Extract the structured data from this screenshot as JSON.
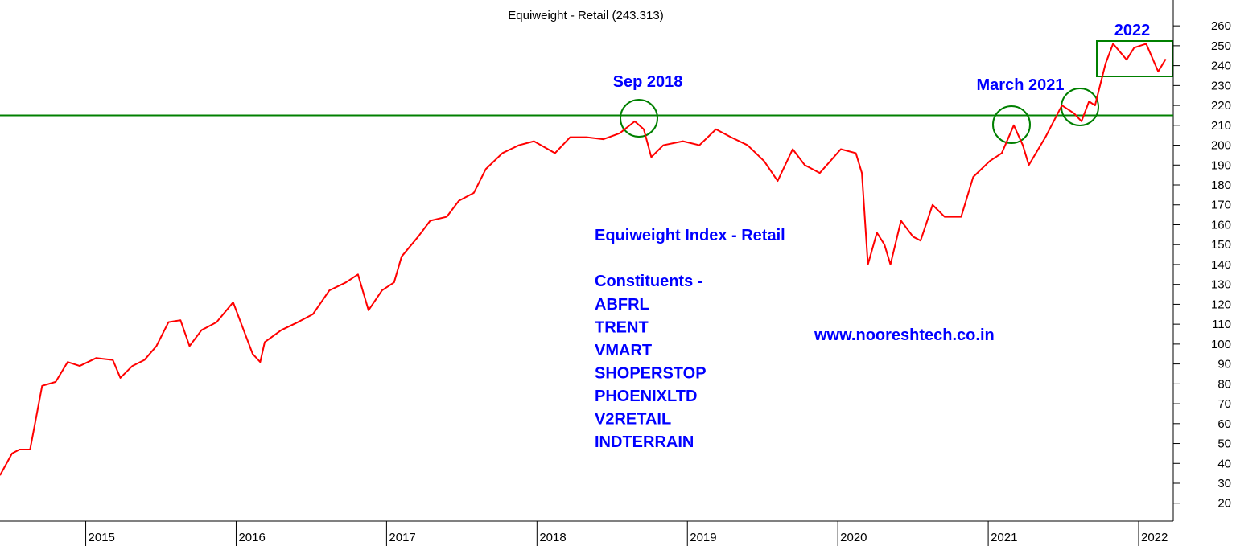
{
  "chart_data": {
    "type": "line",
    "title": "Equiweight - Retail (243.313)",
    "x": [
      2014.43,
      2014.51,
      2014.56,
      2014.63,
      2014.67,
      2014.71,
      2014.8,
      2014.88,
      2014.96,
      2015.07,
      2015.18,
      2015.23,
      2015.31,
      2015.39,
      2015.47,
      2015.55,
      2015.63,
      2015.69,
      2015.77,
      2015.87,
      2015.98,
      2016.03,
      2016.11,
      2016.16,
      2016.19,
      2016.3,
      2016.41,
      2016.51,
      2016.62,
      2016.73,
      2016.81,
      2016.88,
      2016.97,
      2017.05,
      2017.1,
      2017.21,
      2017.29,
      2017.4,
      2017.48,
      2017.58,
      2017.66,
      2017.77,
      2017.88,
      2017.98,
      2018.12,
      2018.22,
      2018.33,
      2018.44,
      2018.55,
      2018.65,
      2018.71,
      2018.76,
      2018.84,
      2018.97,
      2019.08,
      2019.19,
      2019.29,
      2019.4,
      2019.51,
      2019.6,
      2019.7,
      2019.78,
      2019.88,
      2020.02,
      2020.12,
      2020.16,
      2020.2,
      2020.26,
      2020.31,
      2020.35,
      2020.42,
      2020.5,
      2020.55,
      2020.63,
      2020.71,
      2020.82,
      2020.9,
      2021.01,
      2021.09,
      2021.17,
      2021.23,
      2021.27,
      2021.38,
      2021.49,
      2021.57,
      2021.62,
      2021.67,
      2021.71,
      2021.78,
      2021.83,
      2021.92,
      2021.97,
      2022.05,
      2022.13,
      2022.18
    ],
    "series": [
      {
        "name": "Equiweight - Retail",
        "color": "#ff0000",
        "values": [
          34,
          45,
          47,
          47,
          63,
          79,
          81,
          91,
          89,
          93,
          92,
          83,
          89,
          92,
          99,
          111,
          112,
          99,
          107,
          111,
          121,
          111,
          95,
          91,
          101,
          107,
          111,
          115,
          127,
          131,
          135,
          117,
          127,
          131,
          144,
          154,
          162,
          164,
          172,
          176,
          188,
          196,
          200,
          202,
          196,
          204,
          204,
          203,
          206,
          212,
          208,
          194,
          200,
          202,
          200,
          208,
          204,
          200,
          192,
          182,
          198,
          190,
          186,
          198,
          196,
          186,
          140,
          156,
          150,
          140,
          162,
          154,
          152,
          170,
          164,
          164,
          184,
          192,
          196,
          210,
          200,
          190,
          204,
          220,
          216,
          212,
          222,
          220,
          241,
          251,
          243,
          249,
          251,
          237,
          243.313
        ]
      }
    ],
    "hline": 215,
    "hline_color": "#008000",
    "xlim": [
      2014.43,
      2022.23
    ],
    "xticks": [
      2015,
      2016,
      2017,
      2018,
      2019,
      2020,
      2021,
      2022
    ],
    "ylim": [
      11,
      273
    ],
    "yticks": [
      20,
      30,
      40,
      50,
      60,
      70,
      80,
      90,
      100,
      110,
      120,
      130,
      140,
      150,
      160,
      170,
      180,
      190,
      200,
      210,
      220,
      230,
      240,
      250,
      260
    ],
    "annotations": [
      "Sep 2018",
      "March 2021",
      "2022",
      "Equiweight Index - Retail",
      "www.nooreshtech.co.in"
    ],
    "constituents_heading": "Constituents -",
    "constituents": [
      "ABFRL",
      "TRENT",
      "VMART",
      "SHOPERSTOP",
      "PHOENIXLTD",
      "V2RETAIL",
      "INDTERRAIN"
    ]
  }
}
